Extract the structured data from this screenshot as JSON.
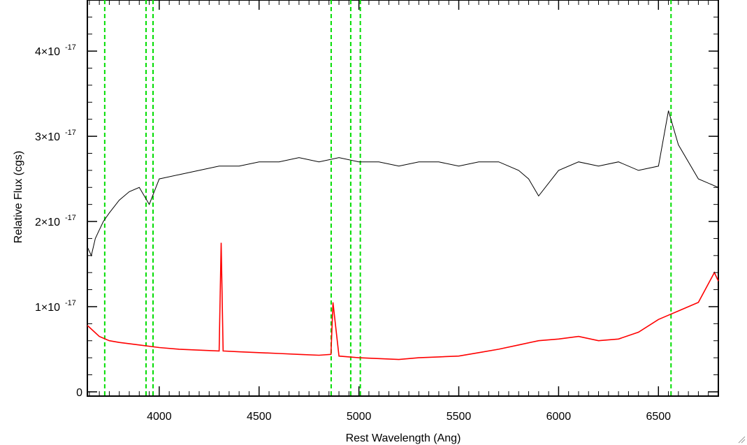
{
  "chart_data": {
    "type": "line",
    "title": "",
    "xlabel": "Rest Wavelength (Ang)",
    "ylabel": "Relative Flux (cgs)",
    "xlim": [
      3640,
      6800
    ],
    "ylim": [
      -5e-19,
      4.6e-17
    ],
    "x_ticks": [
      4000,
      4500,
      5000,
      5500,
      6000,
      6500
    ],
    "x_tick_labels": [
      "4000",
      "4500",
      "5000",
      "5500",
      "6000",
      "6500"
    ],
    "y_ticks": [
      0,
      1e-17,
      2e-17,
      3e-17,
      4e-17
    ],
    "y_tick_labels": [
      {
        "mant": "0",
        "exp": ""
      },
      {
        "mant": "1×10",
        "exp": "-17"
      },
      {
        "mant": "2×10",
        "exp": "-17"
      },
      {
        "mant": "3×10",
        "exp": "-17"
      },
      {
        "mant": "4×10",
        "exp": "-17"
      }
    ],
    "line_markers": {
      "color": "#00dd00",
      "x": [
        3727,
        3934,
        3969,
        4861,
        4959,
        5007,
        6563
      ]
    },
    "series": [
      {
        "color": "#000000",
        "x": [
          3640,
          3660,
          3680,
          3700,
          3720,
          3750,
          3800,
          3850,
          3900,
          3950,
          4000,
          4100,
          4200,
          4300,
          4400,
          4500,
          4600,
          4700,
          4800,
          4900,
          5000,
          5100,
          5200,
          5300,
          5400,
          5500,
          5600,
          5700,
          5800,
          5850,
          5900,
          6000,
          6100,
          6200,
          6300,
          6400,
          6500,
          6550,
          6600,
          6700,
          6800
        ],
        "values": [
          1.7e-17,
          1.6e-17,
          1.8e-17,
          1.9e-17,
          2e-17,
          2.1e-17,
          2.25e-17,
          2.35e-17,
          2.4e-17,
          2.2e-17,
          2.5e-17,
          2.55e-17,
          2.6e-17,
          2.65e-17,
          2.65e-17,
          2.7e-17,
          2.7e-17,
          2.75e-17,
          2.7e-17,
          2.75e-17,
          2.7e-17,
          2.7e-17,
          2.65e-17,
          2.7e-17,
          2.7e-17,
          2.65e-17,
          2.7e-17,
          2.7e-17,
          2.6e-17,
          2.5e-17,
          2.3e-17,
          2.6e-17,
          2.7e-17,
          2.65e-17,
          2.7e-17,
          2.6e-17,
          2.65e-17,
          3.3e-17,
          2.9e-17,
          2.5e-17,
          2.4e-17
        ]
      },
      {
        "color": "#ff0000",
        "x": [
          3640,
          3700,
          3750,
          3800,
          3900,
          4000,
          4100,
          4200,
          4300,
          4310,
          4320,
          4400,
          4500,
          4600,
          4700,
          4800,
          4860,
          4870,
          4900,
          5000,
          5100,
          5200,
          5300,
          5400,
          5500,
          5600,
          5700,
          5800,
          5900,
          6000,
          6100,
          6200,
          6300,
          6400,
          6500,
          6550,
          6600,
          6700,
          6780,
          6800
        ],
        "values": [
          7.8e-18,
          6.5e-18,
          6e-18,
          5.8e-18,
          5.5e-18,
          5.2e-18,
          5e-18,
          4.9e-18,
          4.8e-18,
          1.75e-17,
          4.8e-18,
          4.7e-18,
          4.6e-18,
          4.5e-18,
          4.4e-18,
          4.3e-18,
          4.4e-18,
          1.05e-17,
          4.2e-18,
          4e-18,
          3.9e-18,
          3.8e-18,
          4e-18,
          4.1e-18,
          4.2e-18,
          4.6e-18,
          5e-18,
          5.5e-18,
          6e-18,
          6.2e-18,
          6.5e-18,
          6e-18,
          6.2e-18,
          7e-18,
          8.5e-18,
          9e-18,
          9.5e-18,
          1.05e-17,
          1.4e-17,
          1.3e-17
        ]
      }
    ]
  }
}
